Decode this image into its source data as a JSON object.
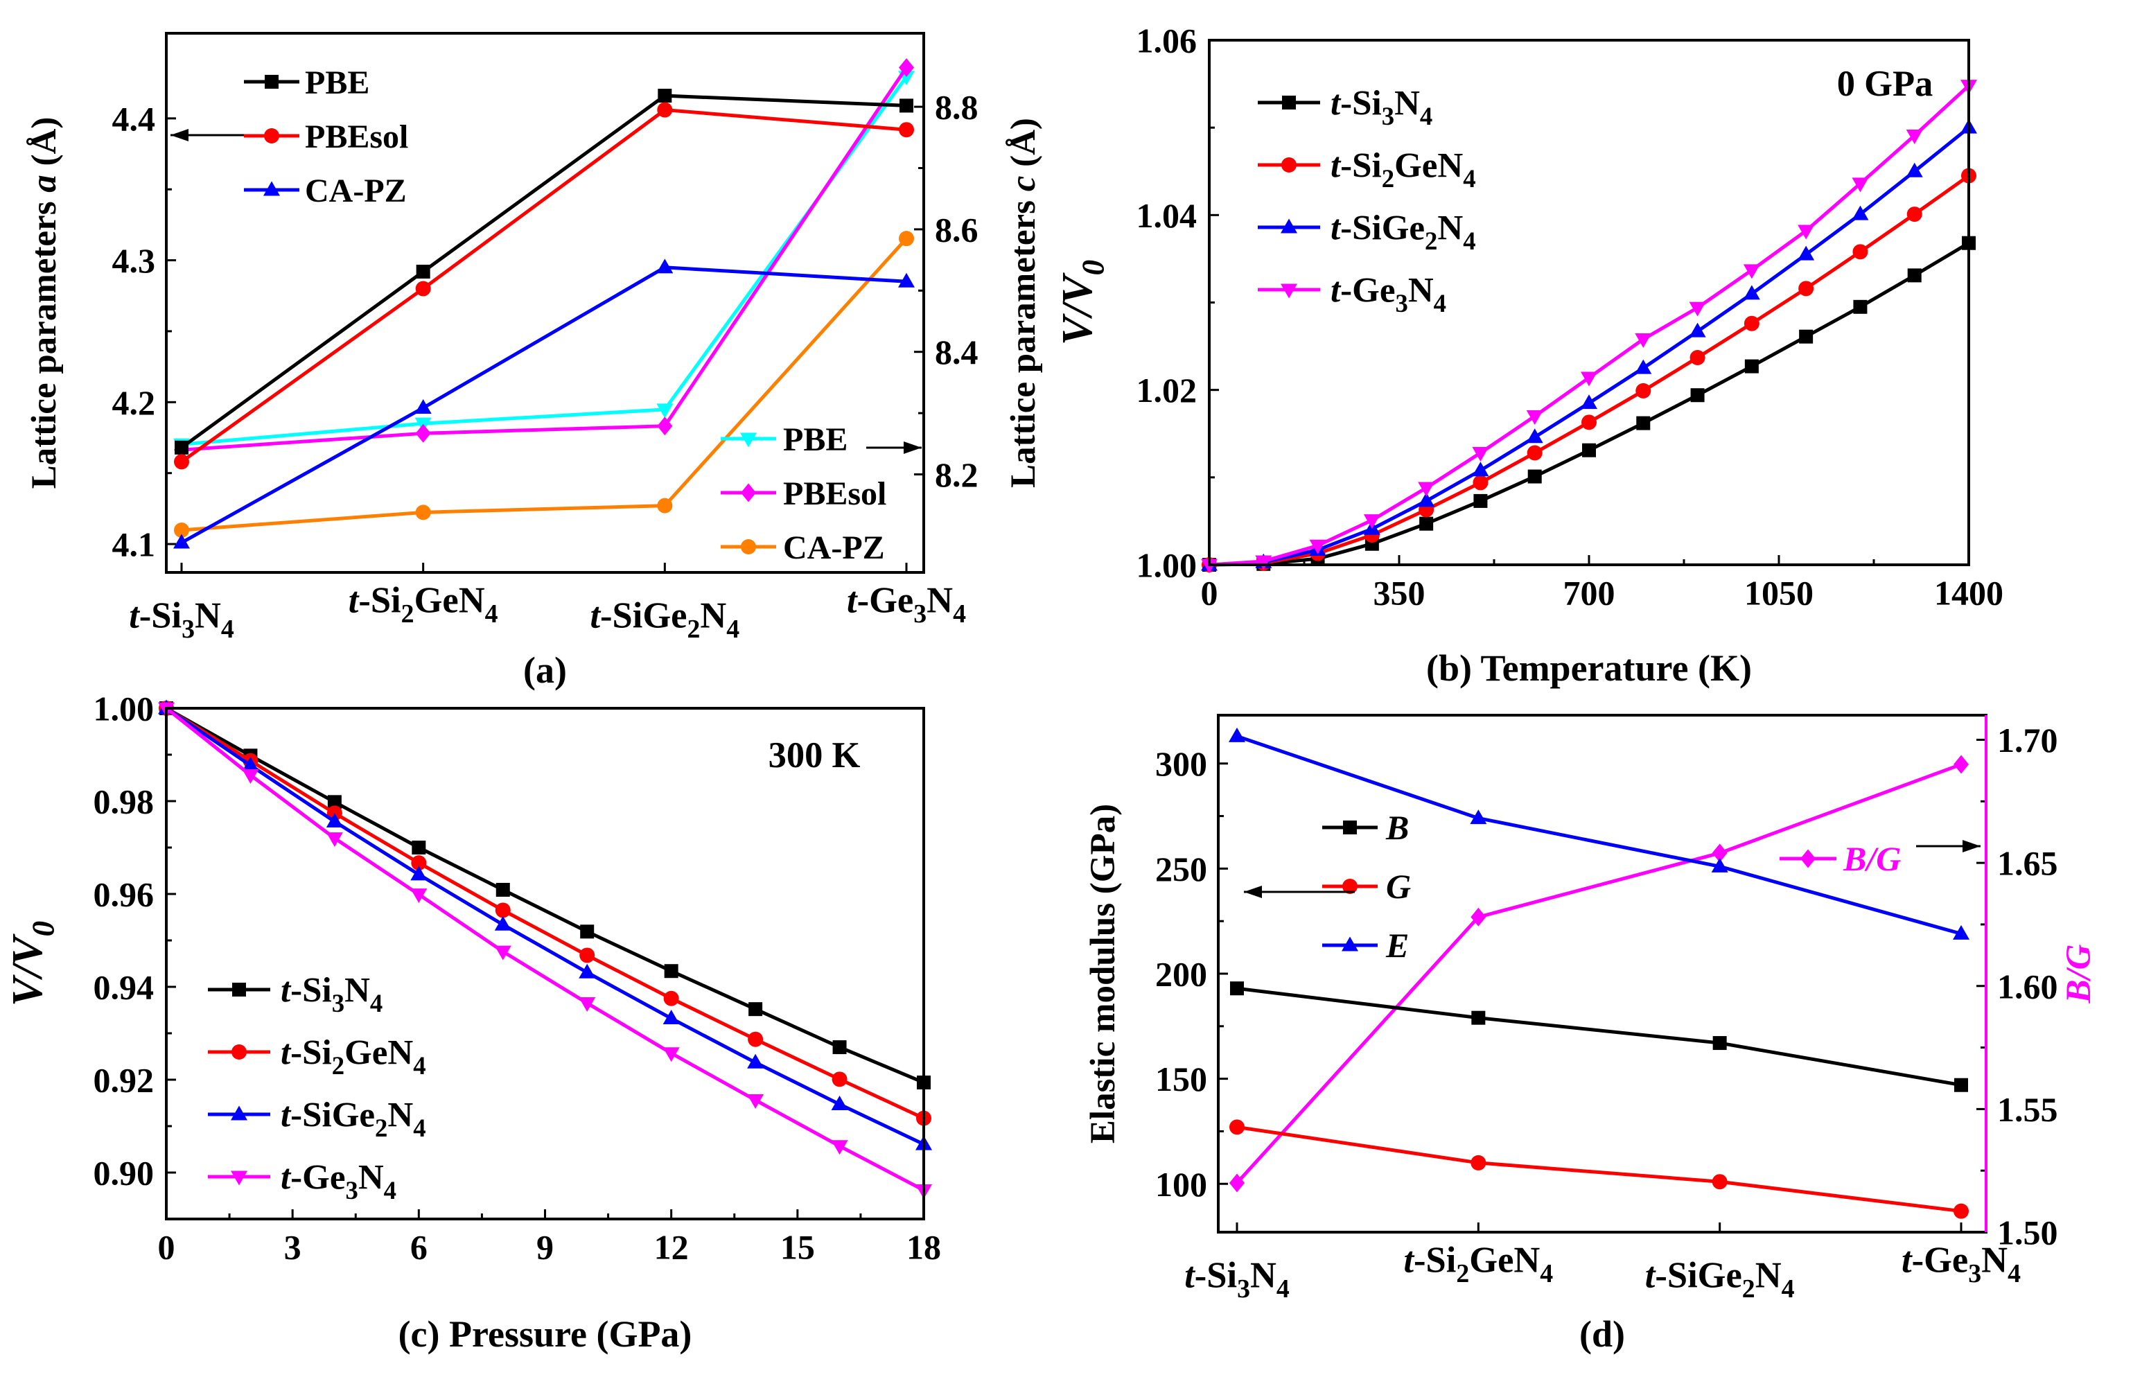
{
  "chart_data": [
    {
      "panel": "a",
      "type": "line",
      "caption": "(a)",
      "categories": [
        "t-Si3N4",
        "t-Si2GeN4",
        "t-SiGe2N4",
        "t-Ge3N4"
      ],
      "category_labels": [
        [
          {
            "t": "t",
            "i": true
          },
          {
            "t": "-Si"
          },
          {
            "t": "3",
            "s": true
          },
          {
            "t": "N"
          },
          {
            "t": "4",
            "s": true
          }
        ],
        [
          {
            "t": "t",
            "i": true
          },
          {
            "t": "-Si"
          },
          {
            "t": "2",
            "s": true
          },
          {
            "t": "GeN"
          },
          {
            "t": "4",
            "s": true
          }
        ],
        [
          {
            "t": "t",
            "i": true
          },
          {
            "t": "-SiGe"
          },
          {
            "t": "2",
            "s": true
          },
          {
            "t": "N"
          },
          {
            "t": "4",
            "s": true
          }
        ],
        [
          {
            "t": "t",
            "i": true
          },
          {
            "t": "-Ge"
          },
          {
            "t": "3",
            "s": true
          },
          {
            "t": "N"
          },
          {
            "t": "4",
            "s": true
          }
        ]
      ],
      "ylabel_left": [
        {
          "t": "Lattice parameters "
        },
        {
          "t": "a",
          "i": true
        },
        {
          "t": " (Å)"
        }
      ],
      "ylabel_right": [
        {
          "t": "Lattice parameters "
        },
        {
          "t": "c",
          "i": true
        },
        {
          "t": " (Å)"
        }
      ],
      "ylim_left": [
        4.08,
        4.46
      ],
      "yticks_left": [
        "4.1",
        "4.2",
        "4.3",
        "4.4"
      ],
      "ylim_right": [
        8.04,
        8.92
      ],
      "yticks_right": [
        "8.2",
        "8.4",
        "8.6",
        "8.8"
      ],
      "series_left": [
        {
          "name": "PBE",
          "color": "#000000",
          "marker": "square",
          "values": [
            4.168,
            4.292,
            4.416,
            4.409
          ]
        },
        {
          "name": "PBEsol",
          "color": "#ff0000",
          "marker": "circle",
          "values": [
            4.158,
            4.28,
            4.406,
            4.392
          ]
        },
        {
          "name": "CA-PZ",
          "color": "#0000ff",
          "marker": "triangle-up",
          "values": [
            4.101,
            4.196,
            4.295,
            4.285
          ]
        }
      ],
      "series_right": [
        {
          "name": "PBE",
          "color": "#00ffff",
          "marker": "triangle-down",
          "values": [
            8.249,
            8.283,
            8.306,
            8.849
          ]
        },
        {
          "name": "PBEsol",
          "color": "#ff00ff",
          "marker": "diamond",
          "values": [
            8.24,
            8.267,
            8.279,
            8.864
          ]
        },
        {
          "name": "CA-PZ",
          "color": "#ff8000",
          "marker": "circle",
          "values": [
            8.109,
            8.138,
            8.149,
            8.585
          ]
        }
      ]
    },
    {
      "panel": "b",
      "type": "line",
      "caption": "(b) Temperature (K)",
      "annotation": "0 GPa",
      "ylabel": [
        {
          "t": "V/V",
          "i": true
        },
        {
          "t": "0",
          "s": true,
          "i": true
        }
      ],
      "xlim": [
        0,
        1400
      ],
      "xticks": [
        "0",
        "350",
        "700",
        "1050",
        "1400"
      ],
      "ylim": [
        1.0,
        1.06
      ],
      "yticks": [
        "1.00",
        "1.02",
        "1.04",
        "1.06"
      ],
      "x": [
        0,
        100,
        200,
        300,
        400,
        500,
        600,
        700,
        800,
        900,
        1000,
        1100,
        1200,
        1300,
        1400
      ],
      "series": [
        {
          "name": [
            {
              "t": "t",
              "i": true
            },
            {
              "t": "-Si"
            },
            {
              "t": "3",
              "s": true
            },
            {
              "t": "N"
            },
            {
              "t": "4",
              "s": true
            }
          ],
          "color": "#000000",
          "marker": "square",
          "values": [
            1.0,
            1.0001,
            1.0007,
            1.0024,
            1.0047,
            1.0073,
            1.0101,
            1.0131,
            1.0162,
            1.0194,
            1.0227,
            1.0261,
            1.0295,
            1.0331,
            1.0368
          ]
        },
        {
          "name": [
            {
              "t": "t",
              "i": true
            },
            {
              "t": "-Si"
            },
            {
              "t": "2",
              "s": true
            },
            {
              "t": "GeN"
            },
            {
              "t": "4",
              "s": true
            }
          ],
          "color": "#ff0000",
          "marker": "circle",
          "values": [
            1.0,
            1.0002,
            1.0013,
            1.0034,
            1.0063,
            1.0094,
            1.0128,
            1.0163,
            1.0199,
            1.0237,
            1.0276,
            1.0316,
            1.0358,
            1.0401,
            1.0445
          ]
        },
        {
          "name": [
            {
              "t": "t",
              "i": true
            },
            {
              "t": "-SiGe"
            },
            {
              "t": "2",
              "s": true
            },
            {
              "t": "N"
            },
            {
              "t": "4",
              "s": true
            }
          ],
          "color": "#0000ff",
          "marker": "triangle-up",
          "values": [
            1.0,
            1.0003,
            1.0017,
            1.0041,
            1.0073,
            1.0108,
            1.0146,
            1.0185,
            1.0225,
            1.0267,
            1.031,
            1.0355,
            1.0401,
            1.045,
            1.05
          ]
        },
        {
          "name": [
            {
              "t": "t",
              "i": true
            },
            {
              "t": "-Ge"
            },
            {
              "t": "3",
              "s": true
            },
            {
              "t": "N"
            },
            {
              "t": "4",
              "s": true
            }
          ],
          "color": "#ff00ff",
          "marker": "triangle-down",
          "values": [
            1.0,
            1.0004,
            1.0022,
            1.0051,
            1.0088,
            1.0128,
            1.017,
            1.0214,
            1.0258,
            1.0294,
            1.0337,
            1.0382,
            1.0436,
            1.0491,
            1.0548
          ]
        }
      ]
    },
    {
      "panel": "c",
      "type": "line",
      "caption": "(c) Pressure (GPa)",
      "annotation": "300 K",
      "ylabel": [
        {
          "t": "V/V",
          "i": true
        },
        {
          "t": "0",
          "s": true,
          "i": true
        }
      ],
      "xlim": [
        0,
        18
      ],
      "xticks": [
        "0",
        "3",
        "6",
        "9",
        "12",
        "15",
        "18"
      ],
      "ylim": [
        0.89,
        1.0
      ],
      "yticks": [
        "0.90",
        "0.92",
        "0.94",
        "0.96",
        "0.98",
        "1.00"
      ],
      "x": [
        0,
        2,
        4,
        6,
        8,
        10,
        12,
        14,
        16,
        18
      ],
      "series": [
        {
          "name": [
            {
              "t": "t",
              "i": true
            },
            {
              "t": "-Si"
            },
            {
              "t": "3",
              "s": true
            },
            {
              "t": "N"
            },
            {
              "t": "4",
              "s": true
            }
          ],
          "color": "#000000",
          "marker": "square",
          "values": [
            1.0,
            0.9898,
            0.9798,
            0.97,
            0.9609,
            0.9519,
            0.9434,
            0.9352,
            0.927,
            0.9194
          ]
        },
        {
          "name": [
            {
              "t": "t",
              "i": true
            },
            {
              "t": "-Si"
            },
            {
              "t": "2",
              "s": true
            },
            {
              "t": "GeN"
            },
            {
              "t": "4",
              "s": true
            }
          ],
          "color": "#ff0000",
          "marker": "circle",
          "values": [
            1.0,
            0.9887,
            0.9774,
            0.9667,
            0.9565,
            0.9468,
            0.9375,
            0.9287,
            0.9201,
            0.9117
          ]
        },
        {
          "name": [
            {
              "t": "t",
              "i": true
            },
            {
              "t": "-SiGe"
            },
            {
              "t": "2",
              "s": true
            },
            {
              "t": "N"
            },
            {
              "t": "4",
              "s": true
            }
          ],
          "color": "#0000ff",
          "marker": "triangle-up",
          "values": [
            1.0,
            0.9877,
            0.9756,
            0.9642,
            0.9534,
            0.9431,
            0.9332,
            0.9237,
            0.9147,
            0.9061
          ]
        },
        {
          "name": [
            {
              "t": "t",
              "i": true
            },
            {
              "t": "-Ge"
            },
            {
              "t": "3",
              "s": true
            },
            {
              "t": "N"
            },
            {
              "t": "4",
              "s": true
            }
          ],
          "color": "#ff00ff",
          "marker": "triangle-down",
          "values": [
            1.0,
            0.9856,
            0.972,
            0.9599,
            0.9476,
            0.9365,
            0.9257,
            0.9156,
            0.9057,
            0.8962
          ]
        }
      ]
    },
    {
      "panel": "d",
      "type": "line",
      "caption": "(d)",
      "categories": [
        "t-Si3N4",
        "t-Si2GeN4",
        "t-SiGe2N4",
        "t-Ge3N4"
      ],
      "category_labels": [
        [
          {
            "t": "t",
            "i": true
          },
          {
            "t": "-Si"
          },
          {
            "t": "3",
            "s": true
          },
          {
            "t": "N"
          },
          {
            "t": "4",
            "s": true
          }
        ],
        [
          {
            "t": "t",
            "i": true
          },
          {
            "t": "-Si"
          },
          {
            "t": "2",
            "s": true
          },
          {
            "t": "GeN"
          },
          {
            "t": "4",
            "s": true
          }
        ],
        [
          {
            "t": "t",
            "i": true
          },
          {
            "t": "-SiGe"
          },
          {
            "t": "2",
            "s": true
          },
          {
            "t": "N"
          },
          {
            "t": "4",
            "s": true
          }
        ],
        [
          {
            "t": "t",
            "i": true
          },
          {
            "t": "-Ge"
          },
          {
            "t": "3",
            "s": true
          },
          {
            "t": "N"
          },
          {
            "t": "4",
            "s": true
          }
        ]
      ],
      "ylabel_left": [
        {
          "t": "Elastic modulus (GPa)"
        }
      ],
      "ylabel_right": [
        {
          "t": "B/G",
          "i": true
        }
      ],
      "ylim_left": [
        77,
        323
      ],
      "yticks_left": [
        "100",
        "150",
        "200",
        "250",
        "300"
      ],
      "ylim_right": [
        1.5,
        1.71
      ],
      "yticks_right": [
        "1.50",
        "1.55",
        "1.60",
        "1.65",
        "1.70"
      ],
      "series_left": [
        {
          "name": [
            {
              "t": "B",
              "i": true
            }
          ],
          "color": "#000000",
          "marker": "square",
          "values": [
            193,
            179,
            167,
            147
          ]
        },
        {
          "name": [
            {
              "t": "G",
              "i": true
            }
          ],
          "color": "#ff0000",
          "marker": "circle",
          "values": [
            127,
            110,
            101,
            87
          ]
        },
        {
          "name": [
            {
              "t": "E",
              "i": true
            }
          ],
          "color": "#0000ff",
          "marker": "triangle-up",
          "values": [
            313,
            274,
            251,
            219
          ]
        }
      ],
      "series_right": [
        {
          "name": [
            {
              "t": "B/G",
              "i": true
            }
          ],
          "color": "#ff00ff",
          "marker": "diamond",
          "values": [
            1.52,
            1.628,
            1.654,
            1.69
          ]
        }
      ]
    }
  ]
}
